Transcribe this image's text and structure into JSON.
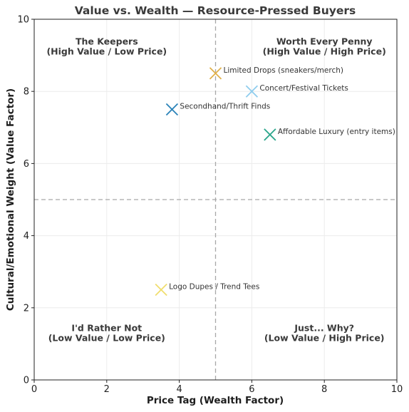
{
  "chart_data": {
    "type": "scatter",
    "title": "Value vs. Wealth — Resource-Pressed Buyers",
    "xlabel": "Price Tag (Wealth Factor)",
    "ylabel": "Cultural/Emotional Weight (Value Factor)",
    "xlim": [
      0,
      10
    ],
    "ylim": [
      0,
      10
    ],
    "xticks": [
      "0",
      "2",
      "4",
      "6",
      "8",
      "10"
    ],
    "yticks": [
      "0",
      "2",
      "4",
      "6",
      "8",
      "10"
    ],
    "grid": true,
    "divider_x": 5,
    "divider_y": 5,
    "quadrants": [
      {
        "id": "top-left",
        "line1": "The Keepers",
        "line2": "(High Value / Low Price)"
      },
      {
        "id": "top-right",
        "line1": "Worth Every Penny",
        "line2": "(High Value / High Price)"
      },
      {
        "id": "bottom-left",
        "line1": "I'd Rather Not",
        "line2": "(Low Value / Low Price)"
      },
      {
        "id": "bottom-right",
        "line1": "Just... Why?",
        "line2": "(Low Value / High Price)"
      }
    ],
    "points": [
      {
        "label": "Limited Drops (sneakers/merch)",
        "x": 5.0,
        "y": 8.5,
        "color": "#e0b04a"
      },
      {
        "label": "Concert/Festival Tickets",
        "x": 6.0,
        "y": 8.0,
        "color": "#8fcdee"
      },
      {
        "label": "Secondhand/Thrift Finds",
        "x": 3.8,
        "y": 7.5,
        "color": "#2a82b8"
      },
      {
        "label": "Affordable Luxury (entry items)",
        "x": 6.5,
        "y": 6.8,
        "color": "#2aa58a"
      },
      {
        "label": "Logo Dupes / Trend Tees",
        "x": 3.5,
        "y": 2.5,
        "color": "#f0de6e"
      }
    ]
  }
}
